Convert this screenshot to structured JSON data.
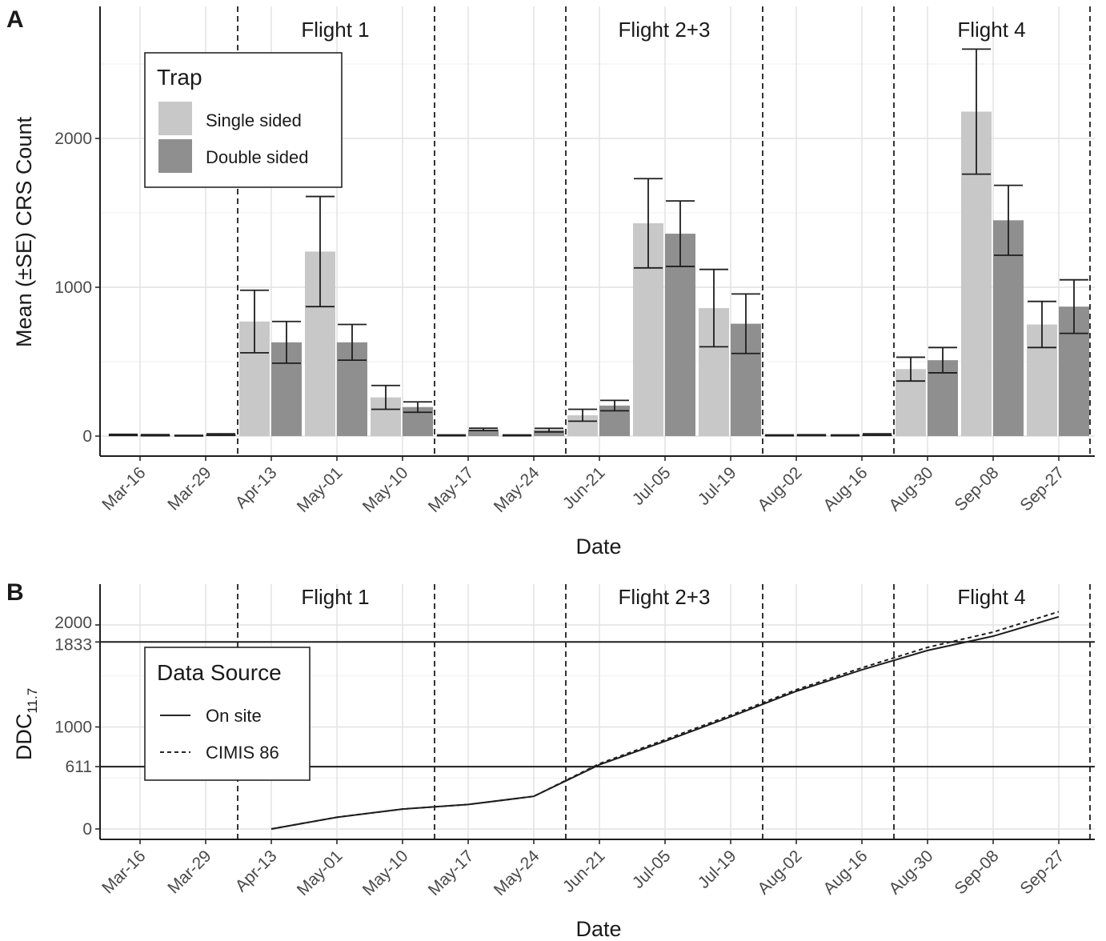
{
  "chart_data": [
    {
      "panel": "A",
      "type": "bar",
      "xlabel": "Date",
      "ylabel": "Mean (±SE) CRS Count",
      "ylim": [
        0,
        2700
      ],
      "yticks": [
        0,
        1000,
        2000
      ],
      "grid": true,
      "categories": [
        "Mar-16",
        "Mar-29",
        "Apr-13",
        "May-01",
        "May-10",
        "May-17",
        "May-24",
        "Jun-21",
        "Jul-05",
        "Jul-19",
        "Aug-02",
        "Aug-16",
        "Aug-30",
        "Sep-08",
        "Sep-27"
      ],
      "flights": [
        {
          "label": "Flight 1",
          "start": "Apr-13",
          "end": "May-10"
        },
        {
          "label": "Flight 2+3",
          "start": "Jun-21",
          "end": "Jul-19"
        },
        {
          "label": "Flight 4",
          "start": "Aug-30",
          "end": "Sep-27"
        }
      ],
      "legend": {
        "title": "Trap",
        "position": "top-left"
      },
      "series": [
        {
          "name": "Single sided",
          "color": "#c8c8c8",
          "values": [
            8,
            3,
            770,
            1240,
            260,
            5,
            5,
            140,
            1430,
            860,
            5,
            5,
            450,
            2180,
            750
          ],
          "se": [
            4,
            2,
            210,
            370,
            80,
            3,
            3,
            40,
            300,
            260,
            3,
            3,
            80,
            420,
            155
          ]
        },
        {
          "name": "Double sided",
          "color": "#8f8f8f",
          "values": [
            6,
            10,
            630,
            630,
            195,
            45,
            40,
            205,
            1360,
            755,
            6,
            10,
            510,
            1450,
            870
          ],
          "se": [
            4,
            5,
            140,
            120,
            35,
            8,
            12,
            35,
            220,
            200,
            3,
            5,
            85,
            235,
            180
          ]
        }
      ]
    },
    {
      "panel": "B",
      "type": "line",
      "xlabel": "Date",
      "ylabel": "DDC",
      "ylabel_sub": "11.7",
      "ylim": [
        -100,
        2420
      ],
      "yticks": [
        0,
        611,
        1000,
        1833,
        2000
      ],
      "hlines": [
        611,
        1833
      ],
      "grid": true,
      "categories": [
        "Mar-16",
        "Mar-29",
        "Apr-13",
        "May-01",
        "May-10",
        "May-17",
        "May-24",
        "Jun-21",
        "Jul-05",
        "Jul-19",
        "Aug-02",
        "Aug-16",
        "Aug-30",
        "Sep-08",
        "Sep-27"
      ],
      "flights": [
        {
          "label": "Flight 1"
        },
        {
          "label": "Flight 2+3"
        },
        {
          "label": "Flight 4"
        }
      ],
      "legend": {
        "title": "Data Source",
        "position": "left"
      },
      "series": [
        {
          "name": "On site",
          "style": "solid",
          "x": [
            "Apr-13",
            "May-01",
            "May-10",
            "May-17",
            "May-24",
            "Jun-21",
            "Jul-05",
            "Jul-19",
            "Aug-02",
            "Aug-16",
            "Aug-30",
            "Sep-08",
            "Sep-27"
          ],
          "y": [
            0,
            115,
            195,
            240,
            320,
            630,
            860,
            1100,
            1350,
            1560,
            1750,
            1890,
            2080
          ]
        },
        {
          "name": "CIMIS 86",
          "style": "dashed",
          "x": [
            "Apr-13",
            "May-01",
            "May-10",
            "May-17",
            "May-24",
            "Jun-21",
            "Jul-05",
            "Jul-19",
            "Aug-02",
            "Aug-16",
            "Aug-30",
            "Sep-08",
            "Sep-27"
          ],
          "y": [
            0,
            115,
            195,
            240,
            320,
            640,
            875,
            1115,
            1365,
            1580,
            1780,
            1930,
            2130
          ]
        }
      ]
    }
  ]
}
